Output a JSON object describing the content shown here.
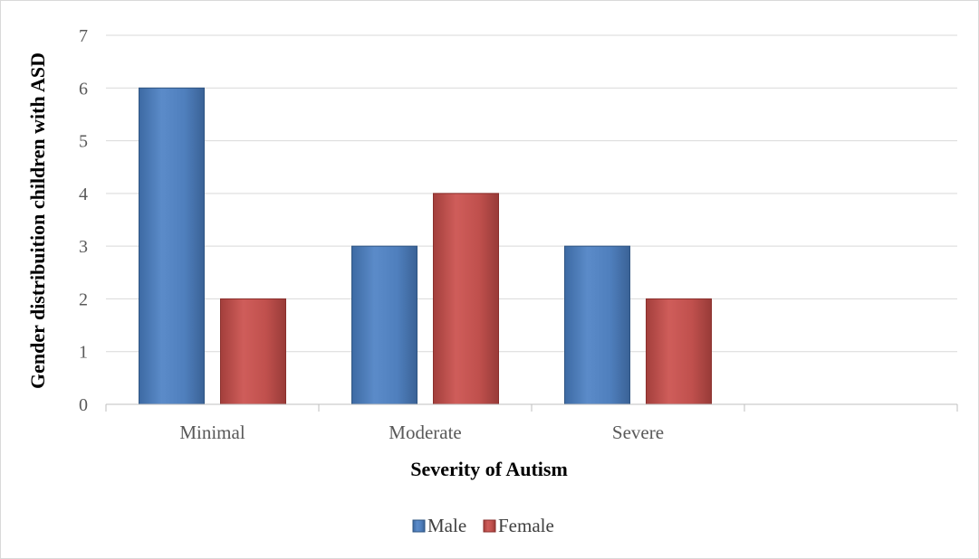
{
  "chart_data": {
    "type": "bar",
    "categories": [
      "Minimal",
      "Moderate",
      "Severe",
      ""
    ],
    "series": [
      {
        "name": "Male",
        "values": [
          6,
          3,
          3,
          null
        ],
        "color": "#4f81bd"
      },
      {
        "name": "Female",
        "values": [
          2,
          4,
          2,
          null
        ],
        "color": "#c0504d"
      }
    ],
    "xlabel": "Severity of Autism",
    "ylabel": "Gender distribuition children with ASD",
    "ylim": [
      0,
      7
    ],
    "yticks": [
      0,
      1,
      2,
      3,
      4,
      5,
      6,
      7
    ],
    "grid": true,
    "legend_position": "bottom"
  }
}
